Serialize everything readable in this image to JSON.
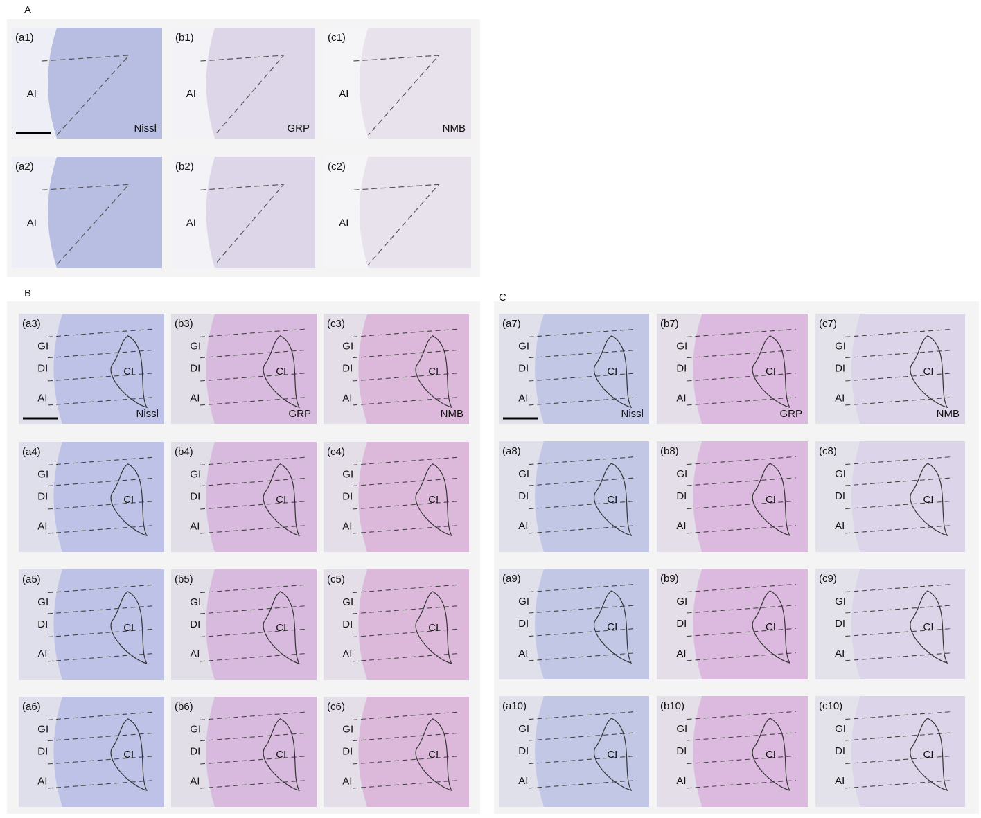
{
  "sections": [
    {
      "label": "A",
      "panels": [
        {
          "id": "(a1)",
          "regions": [
            "AI"
          ],
          "stain": "Nissl"
        },
        {
          "id": "(b1)",
          "regions": [
            "AI"
          ],
          "stain": "GRP"
        },
        {
          "id": "(c1)",
          "regions": [
            "AI"
          ],
          "stain": "NMB"
        },
        {
          "id": "(a2)",
          "regions": [
            "AI"
          ]
        },
        {
          "id": "(b2)",
          "regions": [
            "AI"
          ]
        },
        {
          "id": "(c2)",
          "regions": [
            "AI"
          ]
        }
      ]
    },
    {
      "label": "B",
      "panels": [
        {
          "id": "(a3)",
          "regions": [
            "GI",
            "DI",
            "AI",
            "CI"
          ],
          "stain": "Nissl"
        },
        {
          "id": "(b3)",
          "regions": [
            "GI",
            "DI",
            "AI",
            "CI"
          ],
          "stain": "GRP"
        },
        {
          "id": "(c3)",
          "regions": [
            "GI",
            "DI",
            "AI",
            "CI"
          ],
          "stain": "NMB"
        },
        {
          "id": "(a4)",
          "regions": [
            "GI",
            "DI",
            "AI",
            "CI"
          ]
        },
        {
          "id": "(b4)",
          "regions": [
            "GI",
            "DI",
            "AI",
            "CI"
          ]
        },
        {
          "id": "(c4)",
          "regions": [
            "GI",
            "DI",
            "AI",
            "CI"
          ]
        },
        {
          "id": "(a5)",
          "regions": [
            "GI",
            "DI",
            "AI",
            "CI"
          ]
        },
        {
          "id": "(b5)",
          "regions": [
            "GI",
            "DI",
            "AI",
            "CI"
          ]
        },
        {
          "id": "(c5)",
          "regions": [
            "GI",
            "DI",
            "AI",
            "CI"
          ]
        },
        {
          "id": "(a6)",
          "regions": [
            "GI",
            "DI",
            "AI",
            "CI"
          ]
        },
        {
          "id": "(b6)",
          "regions": [
            "GI",
            "DI",
            "AI",
            "CI"
          ]
        },
        {
          "id": "(c6)",
          "regions": [
            "GI",
            "DI",
            "AI",
            "CI"
          ]
        }
      ]
    },
    {
      "label": "C",
      "panels": [
        {
          "id": "(a7)",
          "regions": [
            "GI",
            "DI",
            "AI",
            "CI"
          ],
          "stain": "Nissl"
        },
        {
          "id": "(b7)",
          "regions": [
            "GI",
            "DI",
            "AI",
            "CI"
          ],
          "stain": "GRP"
        },
        {
          "id": "(c7)",
          "regions": [
            "GI",
            "DI",
            "AI",
            "CI"
          ],
          "stain": "NMB"
        },
        {
          "id": "(a8)",
          "regions": [
            "GI",
            "DI",
            "AI",
            "CI"
          ]
        },
        {
          "id": "(b8)",
          "regions": [
            "GI",
            "DI",
            "AI",
            "CI"
          ]
        },
        {
          "id": "(c8)",
          "regions": [
            "GI",
            "DI",
            "AI",
            "CI"
          ]
        },
        {
          "id": "(a9)",
          "regions": [
            "GI",
            "DI",
            "AI",
            "CI"
          ]
        },
        {
          "id": "(b9)",
          "regions": [
            "GI",
            "DI",
            "AI",
            "CI"
          ]
        },
        {
          "id": "(c9)",
          "regions": [
            "GI",
            "DI",
            "AI",
            "CI"
          ]
        },
        {
          "id": "(a10)",
          "regions": [
            "GI",
            "DI",
            "AI",
            "CI"
          ]
        },
        {
          "id": "(b10)",
          "regions": [
            "GI",
            "DI",
            "AI",
            "CI"
          ]
        },
        {
          "id": "(c10)",
          "regions": [
            "GI",
            "DI",
            "AI",
            "CI"
          ]
        }
      ]
    }
  ]
}
